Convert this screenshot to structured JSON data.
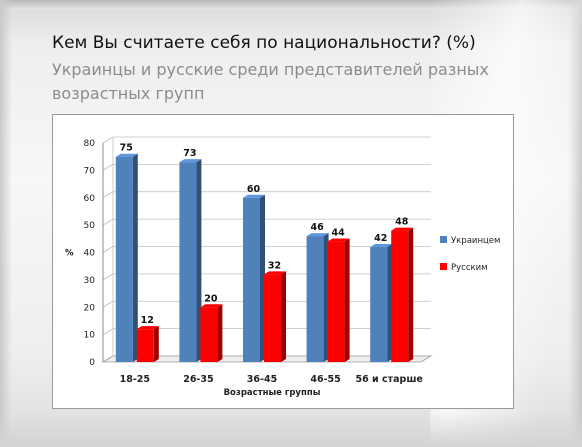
{
  "slide": {
    "title": "Кем Вы считаете себя по национальности? (%)",
    "subtitle": "Украинцы и русские среди представителей разных возрастных групп"
  },
  "chart_data": {
    "type": "bar",
    "title": "",
    "xlabel": "Возрастные группы",
    "ylabel": "%",
    "ylim": [
      0,
      80
    ],
    "yticks": [
      0,
      10,
      20,
      30,
      40,
      50,
      60,
      70,
      80
    ],
    "categories": [
      "18-25",
      "26-35",
      "36-45",
      "46-55",
      "56 и старше"
    ],
    "series": [
      {
        "name": "Украинцем",
        "values": [
          75,
          73,
          60,
          46,
          42
        ],
        "color": "#4f81bd"
      },
      {
        "name": "Русским",
        "values": [
          12,
          20,
          32,
          44,
          48
        ],
        "color": "#ff0000"
      }
    ],
    "legend_position": "right",
    "style": "3d-column"
  }
}
